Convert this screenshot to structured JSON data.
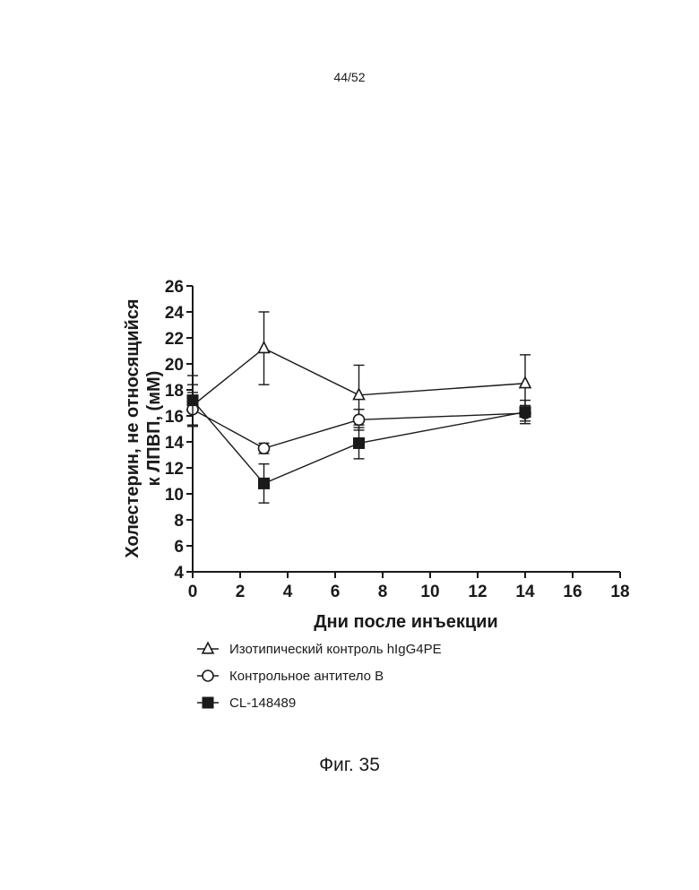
{
  "page_number": "44/52",
  "figure_caption": "Фиг. 35",
  "chart_data": {
    "type": "line",
    "xlabel": "Дни после инъекции",
    "ylabel_lines": [
      "Холестерин, не относящийся",
      "к ЛПВП, (мМ)"
    ],
    "xlim": [
      0,
      18
    ],
    "ylim": [
      4,
      26
    ],
    "xticks": [
      0,
      2,
      4,
      6,
      8,
      10,
      12,
      14,
      16,
      18
    ],
    "yticks": [
      4,
      6,
      8,
      10,
      12,
      14,
      16,
      18,
      20,
      22,
      24,
      26
    ],
    "x": [
      0,
      3,
      7,
      14
    ],
    "series": [
      {
        "name": "Изотипический контроль hIgG4PE",
        "marker": "open-triangle",
        "values": [
          16.8,
          21.2,
          17.6,
          18.5
        ],
        "error": [
          1.6,
          2.8,
          2.3,
          2.2
        ]
      },
      {
        "name": "Контрольное антитело B",
        "marker": "open-circle",
        "values": [
          16.5,
          13.5,
          15.7,
          16.2
        ],
        "error": [
          1.3,
          0.4,
          0.8,
          0.6
        ]
      },
      {
        "name": "CL-148489",
        "marker": "filled-square",
        "values": [
          17.2,
          10.8,
          13.9,
          16.3
        ],
        "error": [
          1.9,
          1.5,
          1.2,
          0.9
        ]
      }
    ]
  }
}
